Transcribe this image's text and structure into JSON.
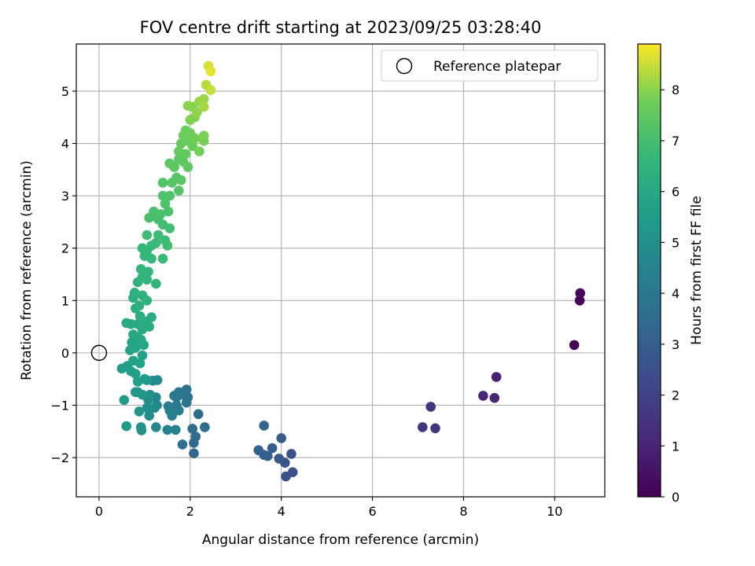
{
  "chart_data": {
    "type": "scatter",
    "title": "FOV centre drift starting at 2023/09/25 03:28:40",
    "xlabel": "Angular distance from reference (arcmin)",
    "ylabel": "Rotation from reference (arcmin)",
    "xlim": [
      -0.5,
      11.1
    ],
    "ylim": [
      -2.75,
      5.9
    ],
    "xticks": [
      0,
      2,
      4,
      6,
      8,
      10
    ],
    "yticks": [
      -2,
      -1,
      0,
      1,
      2,
      3,
      4,
      5
    ],
    "grid": true,
    "legend": {
      "location": "upper right",
      "entries": [
        "Reference platepar"
      ]
    },
    "colorbar": {
      "label": "Hours from first FF file",
      "colormap": "viridis",
      "range": [
        0,
        8.9
      ],
      "ticks": [
        0,
        1,
        2,
        3,
        4,
        5,
        6,
        7,
        8
      ]
    },
    "reference_point": {
      "x": 0,
      "y": 0
    },
    "points": [
      {
        "x": 10.43,
        "y": 0.15,
        "h": 0.1
      },
      {
        "x": 10.55,
        "y": 1.0,
        "h": 0.15
      },
      {
        "x": 10.56,
        "y": 1.14,
        "h": 0.2
      },
      {
        "x": 8.72,
        "y": -0.46,
        "h": 0.95
      },
      {
        "x": 8.43,
        "y": -0.82,
        "h": 1.0
      },
      {
        "x": 8.68,
        "y": -0.86,
        "h": 1.05
      },
      {
        "x": 7.28,
        "y": -1.03,
        "h": 1.5
      },
      {
        "x": 7.1,
        "y": -1.42,
        "h": 1.55
      },
      {
        "x": 7.38,
        "y": -1.44,
        "h": 1.6
      },
      {
        "x": 4.25,
        "y": -2.28,
        "h": 2.5
      },
      {
        "x": 4.1,
        "y": -2.36,
        "h": 2.55
      },
      {
        "x": 4.22,
        "y": -1.93,
        "h": 2.6
      },
      {
        "x": 4.08,
        "y": -2.1,
        "h": 2.7
      },
      {
        "x": 3.95,
        "y": -2.02,
        "h": 2.75
      },
      {
        "x": 4.0,
        "y": -1.63,
        "h": 2.8
      },
      {
        "x": 3.8,
        "y": -1.82,
        "h": 2.95
      },
      {
        "x": 3.7,
        "y": -1.97,
        "h": 3.0
      },
      {
        "x": 3.62,
        "y": -1.95,
        "h": 3.05
      },
      {
        "x": 3.5,
        "y": -1.86,
        "h": 3.1
      },
      {
        "x": 3.62,
        "y": -1.39,
        "h": 3.2
      },
      {
        "x": 2.08,
        "y": -1.92,
        "h": 3.4
      },
      {
        "x": 2.08,
        "y": -1.72,
        "h": 3.45
      },
      {
        "x": 2.12,
        "y": -1.6,
        "h": 3.5
      },
      {
        "x": 2.05,
        "y": -1.45,
        "h": 3.55
      },
      {
        "x": 2.32,
        "y": -1.42,
        "h": 3.6
      },
      {
        "x": 2.18,
        "y": -1.17,
        "h": 3.65
      },
      {
        "x": 1.83,
        "y": -1.75,
        "h": 3.7
      },
      {
        "x": 1.92,
        "y": -0.7,
        "h": 3.8
      },
      {
        "x": 1.95,
        "y": -0.85,
        "h": 3.85
      },
      {
        "x": 1.92,
        "y": -0.95,
        "h": 3.9
      },
      {
        "x": 1.85,
        "y": -0.8,
        "h": 3.95
      },
      {
        "x": 1.75,
        "y": -0.75,
        "h": 4.0
      },
      {
        "x": 1.7,
        "y": -0.85,
        "h": 4.05
      },
      {
        "x": 1.65,
        "y": -0.82,
        "h": 4.1
      },
      {
        "x": 1.7,
        "y": -1.0,
        "h": 4.15
      },
      {
        "x": 1.75,
        "y": -1.1,
        "h": 4.2
      },
      {
        "x": 1.6,
        "y": -1.2,
        "h": 4.25
      },
      {
        "x": 1.52,
        "y": -1.02,
        "h": 4.3
      },
      {
        "x": 1.55,
        "y": -1.1,
        "h": 4.35
      },
      {
        "x": 1.5,
        "y": -1.47,
        "h": 4.4
      },
      {
        "x": 1.68,
        "y": -1.47,
        "h": 4.45
      },
      {
        "x": 1.27,
        "y": -1.0,
        "h": 4.55
      },
      {
        "x": 1.25,
        "y": -1.42,
        "h": 4.6
      },
      {
        "x": 1.25,
        "y": -0.85,
        "h": 4.65
      },
      {
        "x": 1.18,
        "y": -0.53,
        "h": 4.7
      },
      {
        "x": 1.28,
        "y": -0.52,
        "h": 4.75
      },
      {
        "x": 1.22,
        "y": -1.05,
        "h": 4.8
      },
      {
        "x": 1.1,
        "y": -1.2,
        "h": 4.85
      },
      {
        "x": 1.08,
        "y": -0.9,
        "h": 4.9
      },
      {
        "x": 1.05,
        "y": -1.05,
        "h": 4.95
      },
      {
        "x": 1.12,
        "y": -0.8,
        "h": 5.0
      },
      {
        "x": 0.92,
        "y": -1.42,
        "h": 5.05
      },
      {
        "x": 0.93,
        "y": -1.48,
        "h": 5.1
      },
      {
        "x": 0.88,
        "y": -1.12,
        "h": 5.15
      },
      {
        "x": 0.85,
        "y": -0.75,
        "h": 5.2
      },
      {
        "x": 0.8,
        "y": -0.75,
        "h": 5.25
      },
      {
        "x": 0.95,
        "y": -0.8,
        "h": 5.3
      },
      {
        "x": 1.0,
        "y": -0.5,
        "h": 5.35
      },
      {
        "x": 1.05,
        "y": -0.52,
        "h": 5.4
      },
      {
        "x": 0.6,
        "y": -1.4,
        "h": 5.45
      },
      {
        "x": 0.55,
        "y": -0.9,
        "h": 5.5
      },
      {
        "x": 0.5,
        "y": -0.3,
        "h": 5.55
      },
      {
        "x": 0.62,
        "y": -0.25,
        "h": 5.6
      },
      {
        "x": 0.7,
        "y": -0.35,
        "h": 5.63
      },
      {
        "x": 0.8,
        "y": -0.4,
        "h": 5.66
      },
      {
        "x": 0.85,
        "y": -0.55,
        "h": 5.69
      },
      {
        "x": 0.9,
        "y": -0.2,
        "h": 5.72
      },
      {
        "x": 0.95,
        "y": -0.05,
        "h": 5.75
      },
      {
        "x": 0.75,
        "y": -0.15,
        "h": 5.78
      },
      {
        "x": 0.68,
        "y": 0.05,
        "h": 5.81
      },
      {
        "x": 0.72,
        "y": 0.2,
        "h": 5.84
      },
      {
        "x": 0.8,
        "y": 0.1,
        "h": 5.87
      },
      {
        "x": 0.85,
        "y": 0.3,
        "h": 5.9
      },
      {
        "x": 0.92,
        "y": 0.25,
        "h": 5.93
      },
      {
        "x": 0.98,
        "y": 0.15,
        "h": 5.96
      },
      {
        "x": 0.75,
        "y": 0.35,
        "h": 5.99
      },
      {
        "x": 0.7,
        "y": 0.55,
        "h": 6.02
      },
      {
        "x": 0.6,
        "y": 0.57,
        "h": 6.05
      },
      {
        "x": 0.85,
        "y": 0.55,
        "h": 6.08
      },
      {
        "x": 0.95,
        "y": 0.45,
        "h": 6.11
      },
      {
        "x": 1.02,
        "y": 0.6,
        "h": 6.14
      },
      {
        "x": 1.1,
        "y": 0.5,
        "h": 6.17
      },
      {
        "x": 1.15,
        "y": 0.68,
        "h": 6.2
      },
      {
        "x": 0.9,
        "y": 0.7,
        "h": 6.23
      },
      {
        "x": 0.8,
        "y": 0.85,
        "h": 6.26
      },
      {
        "x": 0.75,
        "y": 1.05,
        "h": 6.29
      },
      {
        "x": 0.78,
        "y": 1.15,
        "h": 6.32
      },
      {
        "x": 0.88,
        "y": 0.9,
        "h": 6.35
      },
      {
        "x": 0.95,
        "y": 1.1,
        "h": 6.38
      },
      {
        "x": 1.05,
        "y": 1.0,
        "h": 6.41
      },
      {
        "x": 0.85,
        "y": 1.35,
        "h": 6.44
      },
      {
        "x": 0.95,
        "y": 1.45,
        "h": 6.47
      },
      {
        "x": 1.05,
        "y": 1.4,
        "h": 6.5
      },
      {
        "x": 0.92,
        "y": 1.6,
        "h": 6.53
      },
      {
        "x": 1.08,
        "y": 1.55,
        "h": 6.56
      },
      {
        "x": 1.25,
        "y": 1.32,
        "h": 6.59
      },
      {
        "x": 1.0,
        "y": 1.85,
        "h": 6.62
      },
      {
        "x": 0.95,
        "y": 2.0,
        "h": 6.65
      },
      {
        "x": 1.05,
        "y": 1.95,
        "h": 6.68
      },
      {
        "x": 1.15,
        "y": 1.8,
        "h": 6.71
      },
      {
        "x": 1.15,
        "y": 2.05,
        "h": 6.74
      },
      {
        "x": 1.25,
        "y": 2.1,
        "h": 6.77
      },
      {
        "x": 1.4,
        "y": 1.8,
        "h": 6.8
      },
      {
        "x": 1.3,
        "y": 2.25,
        "h": 6.83
      },
      {
        "x": 1.45,
        "y": 2.15,
        "h": 6.86
      },
      {
        "x": 1.5,
        "y": 2.05,
        "h": 6.89
      },
      {
        "x": 1.05,
        "y": 2.25,
        "h": 6.92
      },
      {
        "x": 1.55,
        "y": 2.38,
        "h": 6.95
      },
      {
        "x": 1.4,
        "y": 2.45,
        "h": 6.98
      },
      {
        "x": 1.3,
        "y": 2.55,
        "h": 7.01
      },
      {
        "x": 1.1,
        "y": 2.58,
        "h": 7.04
      },
      {
        "x": 1.2,
        "y": 2.7,
        "h": 7.07
      },
      {
        "x": 1.35,
        "y": 2.65,
        "h": 7.1
      },
      {
        "x": 1.52,
        "y": 2.7,
        "h": 7.13
      },
      {
        "x": 1.45,
        "y": 2.85,
        "h": 7.16
      },
      {
        "x": 1.4,
        "y": 3.0,
        "h": 7.19
      },
      {
        "x": 1.55,
        "y": 3.0,
        "h": 7.22
      },
      {
        "x": 1.4,
        "y": 3.25,
        "h": 7.25
      },
      {
        "x": 1.6,
        "y": 3.25,
        "h": 7.28
      },
      {
        "x": 1.75,
        "y": 3.1,
        "h": 7.31
      },
      {
        "x": 1.7,
        "y": 3.35,
        "h": 7.34
      },
      {
        "x": 1.8,
        "y": 3.3,
        "h": 7.37
      },
      {
        "x": 1.65,
        "y": 3.55,
        "h": 7.4
      },
      {
        "x": 1.55,
        "y": 3.62,
        "h": 7.43
      },
      {
        "x": 1.75,
        "y": 3.7,
        "h": 7.46
      },
      {
        "x": 1.85,
        "y": 3.65,
        "h": 7.49
      },
      {
        "x": 1.95,
        "y": 3.55,
        "h": 7.52
      },
      {
        "x": 1.9,
        "y": 3.8,
        "h": 7.55
      },
      {
        "x": 1.75,
        "y": 3.85,
        "h": 7.58
      },
      {
        "x": 1.8,
        "y": 4.0,
        "h": 7.61
      },
      {
        "x": 1.95,
        "y": 4.05,
        "h": 7.64
      },
      {
        "x": 2.05,
        "y": 3.95,
        "h": 7.67
      },
      {
        "x": 1.85,
        "y": 4.15,
        "h": 7.7
      },
      {
        "x": 1.9,
        "y": 4.25,
        "h": 7.73
      },
      {
        "x": 2.0,
        "y": 4.2,
        "h": 7.76
      },
      {
        "x": 2.1,
        "y": 4.1,
        "h": 7.79
      },
      {
        "x": 2.2,
        "y": 3.85,
        "h": 7.82
      },
      {
        "x": 2.3,
        "y": 4.05,
        "h": 7.85
      },
      {
        "x": 2.3,
        "y": 4.15,
        "h": 7.88
      },
      {
        "x": 2.0,
        "y": 4.45,
        "h": 7.91
      },
      {
        "x": 2.1,
        "y": 4.5,
        "h": 7.94
      },
      {
        "x": 2.05,
        "y": 4.7,
        "h": 7.97
      },
      {
        "x": 1.95,
        "y": 4.72,
        "h": 8.0
      },
      {
        "x": 2.15,
        "y": 4.6,
        "h": 8.05
      },
      {
        "x": 2.2,
        "y": 4.8,
        "h": 8.1
      },
      {
        "x": 2.3,
        "y": 4.85,
        "h": 8.15
      },
      {
        "x": 2.3,
        "y": 4.7,
        "h": 8.2
      },
      {
        "x": 2.35,
        "y": 5.12,
        "h": 8.35
      },
      {
        "x": 2.45,
        "y": 5.02,
        "h": 8.45
      },
      {
        "x": 2.4,
        "y": 5.48,
        "h": 8.6
      },
      {
        "x": 2.45,
        "y": 5.38,
        "h": 8.7
      }
    ]
  }
}
